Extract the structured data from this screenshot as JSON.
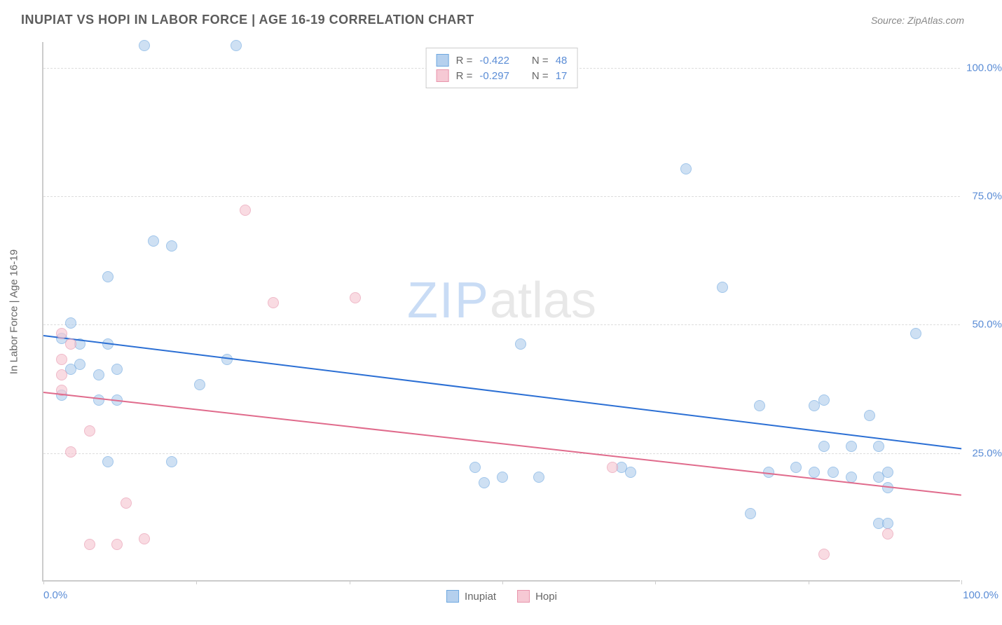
{
  "header": {
    "title": "INUPIAT VS HOPI IN LABOR FORCE | AGE 16-19 CORRELATION CHART",
    "source": "Source: ZipAtlas.com"
  },
  "chart": {
    "type": "scatter",
    "yaxis_title": "In Labor Force | Age 16-19",
    "background_color": "#ffffff",
    "grid_color": "#dddddd",
    "axis_color": "#cccccc",
    "watermark_zip": "ZIP",
    "watermark_atlas": "atlas",
    "xlim": [
      0,
      100
    ],
    "ylim": [
      0,
      105
    ],
    "ytick_positions": [
      25,
      50,
      75,
      100
    ],
    "ytick_labels": [
      "25.0%",
      "50.0%",
      "75.0%",
      "100.0%"
    ],
    "xtick_positions": [
      0,
      16.67,
      33.33,
      50,
      66.67,
      83.33,
      100
    ],
    "xaxis_min_label": "0.0%",
    "xaxis_max_label": "100.0%",
    "marker_radius": 8,
    "series": [
      {
        "name": "Inupiat",
        "fill": "#b5d0ee",
        "stroke": "#6fa8e0",
        "fill_opacity": 0.65,
        "r_label": "R = ",
        "r_value": "-0.422",
        "n_label": "N = ",
        "n_value": "48",
        "trend": {
          "x1": 0,
          "y1": 48,
          "x2": 100,
          "y2": 26,
          "color": "#2b6fd4",
          "width": 2
        },
        "points": [
          {
            "x": 11,
            "y": 104
          },
          {
            "x": 21,
            "y": 104
          },
          {
            "x": 70,
            "y": 80
          },
          {
            "x": 12,
            "y": 66
          },
          {
            "x": 14,
            "y": 65
          },
          {
            "x": 7,
            "y": 59
          },
          {
            "x": 3,
            "y": 50
          },
          {
            "x": 2,
            "y": 47
          },
          {
            "x": 4,
            "y": 46
          },
          {
            "x": 7,
            "y": 46
          },
          {
            "x": 52,
            "y": 46
          },
          {
            "x": 95,
            "y": 48
          },
          {
            "x": 74,
            "y": 57
          },
          {
            "x": 3,
            "y": 41
          },
          {
            "x": 4,
            "y": 42
          },
          {
            "x": 6,
            "y": 40
          },
          {
            "x": 8,
            "y": 41
          },
          {
            "x": 20,
            "y": 43
          },
          {
            "x": 17,
            "y": 38
          },
          {
            "x": 2,
            "y": 36
          },
          {
            "x": 6,
            "y": 35
          },
          {
            "x": 8,
            "y": 35
          },
          {
            "x": 78,
            "y": 34
          },
          {
            "x": 84,
            "y": 34
          },
          {
            "x": 85,
            "y": 35
          },
          {
            "x": 90,
            "y": 32
          },
          {
            "x": 7,
            "y": 23
          },
          {
            "x": 14,
            "y": 23
          },
          {
            "x": 47,
            "y": 22
          },
          {
            "x": 50,
            "y": 20
          },
          {
            "x": 54,
            "y": 20
          },
          {
            "x": 63,
            "y": 22
          },
          {
            "x": 64,
            "y": 21
          },
          {
            "x": 79,
            "y": 21
          },
          {
            "x": 82,
            "y": 22
          },
          {
            "x": 84,
            "y": 21
          },
          {
            "x": 86,
            "y": 21
          },
          {
            "x": 88,
            "y": 20
          },
          {
            "x": 91,
            "y": 20
          },
          {
            "x": 92,
            "y": 21
          },
          {
            "x": 85,
            "y": 26
          },
          {
            "x": 88,
            "y": 26
          },
          {
            "x": 91,
            "y": 26
          },
          {
            "x": 77,
            "y": 13
          },
          {
            "x": 91,
            "y": 11
          },
          {
            "x": 92,
            "y": 11
          },
          {
            "x": 92,
            "y": 18
          },
          {
            "x": 48,
            "y": 19
          }
        ]
      },
      {
        "name": "Hopi",
        "fill": "#f6c9d4",
        "stroke": "#e895ac",
        "fill_opacity": 0.65,
        "r_label": "R = ",
        "r_value": "-0.297",
        "n_label": "N = ",
        "n_value": "17",
        "trend": {
          "x1": 0,
          "y1": 37,
          "x2": 100,
          "y2": 17,
          "color": "#e06b8c",
          "width": 2
        },
        "points": [
          {
            "x": 22,
            "y": 72
          },
          {
            "x": 25,
            "y": 54
          },
          {
            "x": 34,
            "y": 55
          },
          {
            "x": 2,
            "y": 48
          },
          {
            "x": 3,
            "y": 46
          },
          {
            "x": 2,
            "y": 43
          },
          {
            "x": 2,
            "y": 37
          },
          {
            "x": 2,
            "y": 40
          },
          {
            "x": 5,
            "y": 29
          },
          {
            "x": 3,
            "y": 25
          },
          {
            "x": 9,
            "y": 15
          },
          {
            "x": 5,
            "y": 7
          },
          {
            "x": 8,
            "y": 7
          },
          {
            "x": 11,
            "y": 8
          },
          {
            "x": 85,
            "y": 5
          },
          {
            "x": 92,
            "y": 9
          },
          {
            "x": 62,
            "y": 22
          }
        ]
      }
    ],
    "legend_bottom": [
      {
        "label": "Inupiat",
        "fill": "#b5d0ee",
        "stroke": "#6fa8e0"
      },
      {
        "label": "Hopi",
        "fill": "#f6c9d4",
        "stroke": "#e895ac"
      }
    ]
  }
}
